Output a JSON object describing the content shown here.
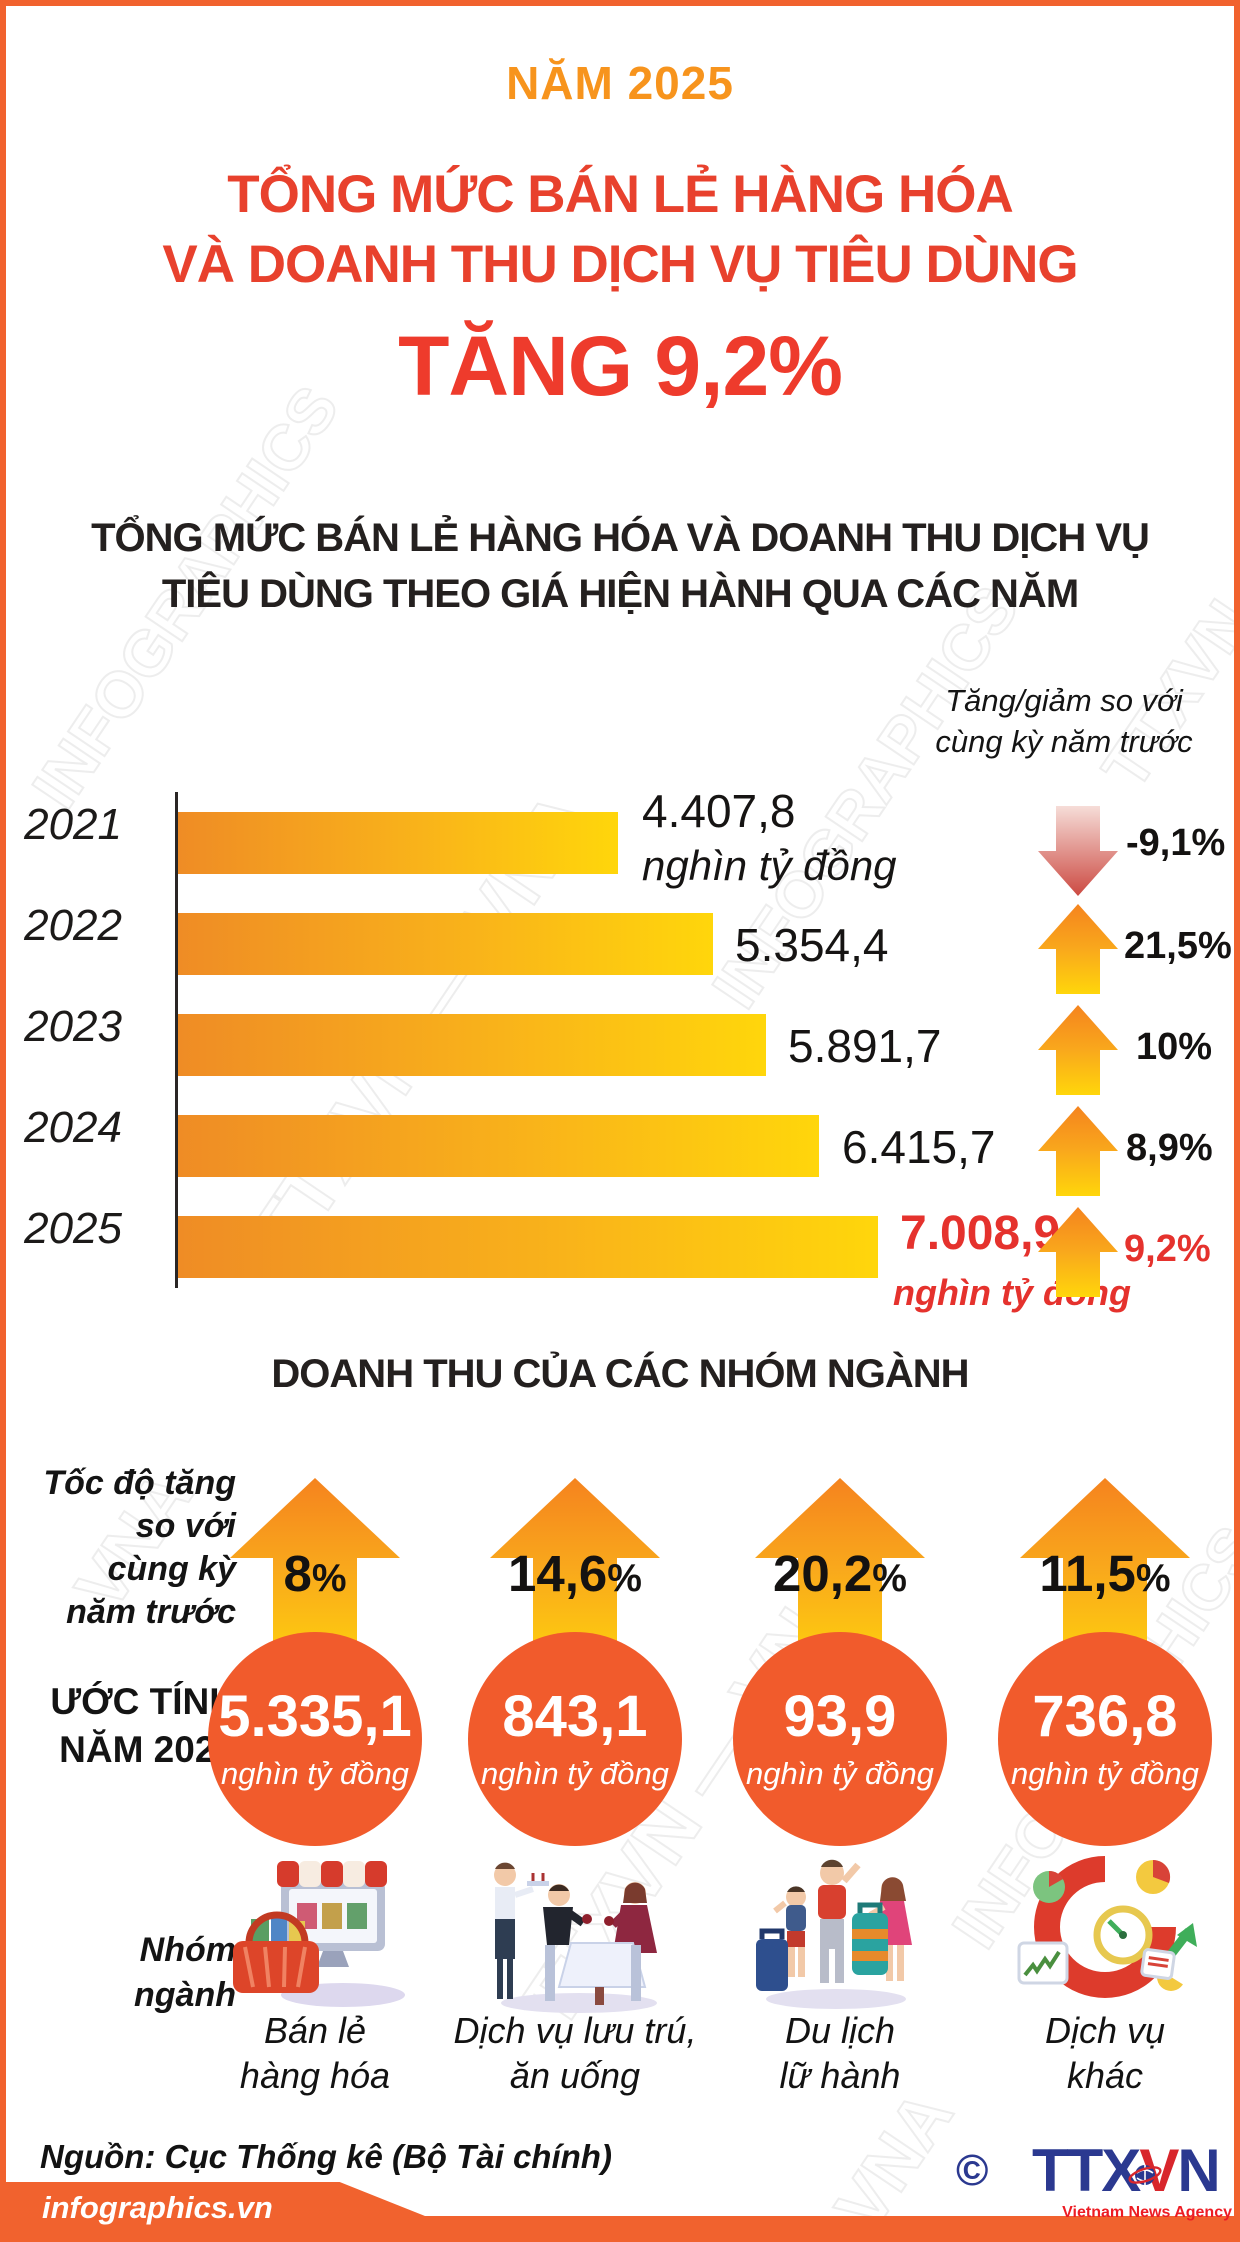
{
  "accent_color": "#f1622e",
  "header": {
    "kicker": "NĂM 2025",
    "title_line1": "TỔNG MỨC BÁN LẺ HÀNG HÓA",
    "title_line2": "VÀ DOANH THU DỊCH VỤ TIÊU DÙNG",
    "headline": "TĂNG 9,2%"
  },
  "chart": {
    "title_line1": "TỔNG MỨC BÁN LẺ HÀNG HÓA VÀ DOANH THU DỊCH VỤ",
    "title_line2": "TIÊU DÙNG THEO GIÁ HIỆN HÀNH QUA CÁC NĂM",
    "legend_line1": "Tăng/giảm so với",
    "legend_line2": "cùng kỳ năm trước",
    "rows": [
      {
        "year": "2021",
        "value": "4.407,8",
        "unit": "nghìn tỷ đồng",
        "change": "-9,1%",
        "direction": "down"
      },
      {
        "year": "2022",
        "value": "5.354,4",
        "change": "21,5%",
        "direction": "up"
      },
      {
        "year": "2023",
        "value": "5.891,7",
        "change": "10%",
        "direction": "up"
      },
      {
        "year": "2024",
        "value": "6.415,7",
        "change": "8,9%",
        "direction": "up"
      },
      {
        "year": "2025",
        "value": "7.008,9",
        "unit": "nghìn tỷ đồng",
        "change": "9,2%",
        "direction": "up"
      }
    ]
  },
  "chart_data": [
    {
      "type": "bar",
      "orientation": "horizontal",
      "title": "TỔNG MỨC BÁN LẺ HÀNG HÓA VÀ DOANH THU DỊCH VỤ TIÊU DÙNG THEO GIÁ HIỆN HÀNH QUA CÁC NĂM",
      "categories": [
        "2021",
        "2022",
        "2023",
        "2024",
        "2025"
      ],
      "values": [
        4407.8,
        5354.4,
        5891.7,
        6415.7,
        7008.9
      ],
      "unit": "nghìn tỷ đồng",
      "change_vs_previous_year_pct": [
        -9.1,
        21.5,
        10,
        8.9,
        9.2
      ],
      "xlim": [
        0,
        7008.9
      ],
      "grid": false,
      "legend": "Tăng/giảm so với cùng kỳ năm trước"
    },
    {
      "type": "bar",
      "title": "DOANH THU CỦA CÁC NHÓM NGÀNH",
      "subtitle": "Ước tính năm 2025",
      "categories": [
        "Bán lẻ hàng hóa",
        "Dịch vụ lưu trú, ăn uống",
        "Du lịch lữ hành",
        "Dịch vụ khác"
      ],
      "values": [
        5335.1,
        843.1,
        93.9,
        736.8
      ],
      "unit": "nghìn tỷ đồng",
      "growth_vs_previous_year_pct": [
        8,
        14.6,
        20.2,
        11.5
      ]
    }
  ],
  "groups": {
    "title": "DOANH THU CỦA CÁC NHÓM NGÀNH",
    "growth_caption": [
      "Tốc độ tăng",
      "so với",
      "cùng kỳ",
      "năm trước"
    ],
    "estimate_caption": [
      "ƯỚC TÍNH",
      "NĂM 2025"
    ],
    "category_caption": [
      "Nhóm",
      "ngành"
    ],
    "items": [
      {
        "pct_num": "8",
        "pct_sign": "%",
        "value": "5.335,1",
        "unit": "nghìn tỷ đồng",
        "label1": "Bán lẻ",
        "label2": "hàng hóa",
        "icon": "retail-icon"
      },
      {
        "pct_num": "14,6",
        "pct_sign": "%",
        "value": "843,1",
        "unit": "nghìn tỷ đồng",
        "label1": "Dịch vụ lưu trú,",
        "label2": "ăn uống",
        "icon": "dining-icon"
      },
      {
        "pct_num": "20,2",
        "pct_sign": "%",
        "value": "93,9",
        "unit": "nghìn tỷ đồng",
        "label1": "Du lịch",
        "label2": "lữ hành",
        "icon": "travel-icon"
      },
      {
        "pct_num": "11,5",
        "pct_sign": "%",
        "value": "736,8",
        "unit": "nghìn tỷ đồng",
        "label1": "Dịch vụ",
        "label2": "khác",
        "icon": "services-icon"
      }
    ]
  },
  "footer": {
    "source": "Nguồn: Cục Thống kê (Bộ Tài chính)",
    "site": "infographics.vn",
    "copyright": "©",
    "logo": {
      "part1": "TTX",
      "part2": "V",
      "part3": "N",
      "tagline": "Vietnam News Agency"
    }
  },
  "watermark": {
    "a": "TTXVN — VNA",
    "b": "INFOGRAPHICS",
    "c": "VNA"
  }
}
